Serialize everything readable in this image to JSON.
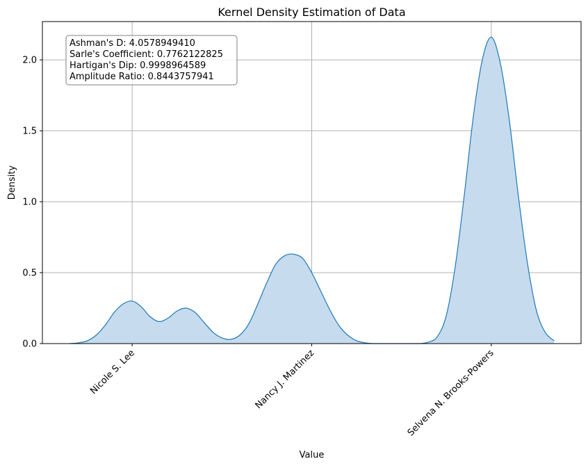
{
  "chart_data": {
    "type": "area",
    "title": "Kernel Density Estimation of Data",
    "xlabel": "Value",
    "ylabel": "Density",
    "xlim": [
      -0.5,
      2.5
    ],
    "ylim": [
      0,
      2.27
    ],
    "grid": true,
    "legend": "none",
    "x_tick_labels": [
      {
        "x": 0,
        "label": "Nicole S. Lee"
      },
      {
        "x": 1,
        "label": "Nancy J. Martinez"
      },
      {
        "x": 2,
        "label": "Selvena N. Brooks-Powers"
      }
    ],
    "y_ticks": [
      0,
      0.5,
      1.0,
      1.5,
      2.0
    ],
    "y_tick_labels": [
      "0.0",
      "0.5",
      "1.0",
      "1.5",
      "2.0"
    ],
    "series": [
      {
        "color": "#1f77b4",
        "fill": "#c6dbee",
        "x": [
          -0.35,
          -0.3,
          -0.25,
          -0.2,
          -0.15,
          -0.1,
          -0.05,
          0.0,
          0.05,
          0.1,
          0.15,
          0.2,
          0.25,
          0.3,
          0.35,
          0.4,
          0.45,
          0.5,
          0.55,
          0.6,
          0.65,
          0.7,
          0.75,
          0.8,
          0.85,
          0.9,
          0.95,
          1.0,
          1.05,
          1.1,
          1.15,
          1.2,
          1.25,
          1.3,
          1.35,
          1.4,
          1.45,
          1.5,
          1.55,
          1.6,
          1.65,
          1.7,
          1.75,
          1.8,
          1.85,
          1.9,
          1.95,
          2.0,
          2.05,
          2.1,
          2.15,
          2.2,
          2.25,
          2.3,
          2.35
        ],
        "y": [
          0.0,
          0.005,
          0.02,
          0.06,
          0.13,
          0.22,
          0.28,
          0.3,
          0.26,
          0.19,
          0.155,
          0.18,
          0.23,
          0.25,
          0.22,
          0.15,
          0.08,
          0.04,
          0.03,
          0.06,
          0.14,
          0.28,
          0.43,
          0.56,
          0.62,
          0.63,
          0.6,
          0.5,
          0.37,
          0.24,
          0.13,
          0.06,
          0.02,
          0.005,
          0.0,
          0.0,
          0.0,
          0.0,
          0.0,
          0.0,
          0.01,
          0.05,
          0.2,
          0.55,
          1.05,
          1.6,
          2.0,
          2.16,
          1.98,
          1.58,
          1.05,
          0.58,
          0.24,
          0.08,
          0.02
        ]
      }
    ],
    "annotation": [
      "Ashman's D: 4.0578949410",
      "Sarle's Coefficient: 0.7762122825",
      "Hartigan's Dip: 0.9998964589",
      "Amplitude Ratio: 0.8443757941"
    ]
  }
}
